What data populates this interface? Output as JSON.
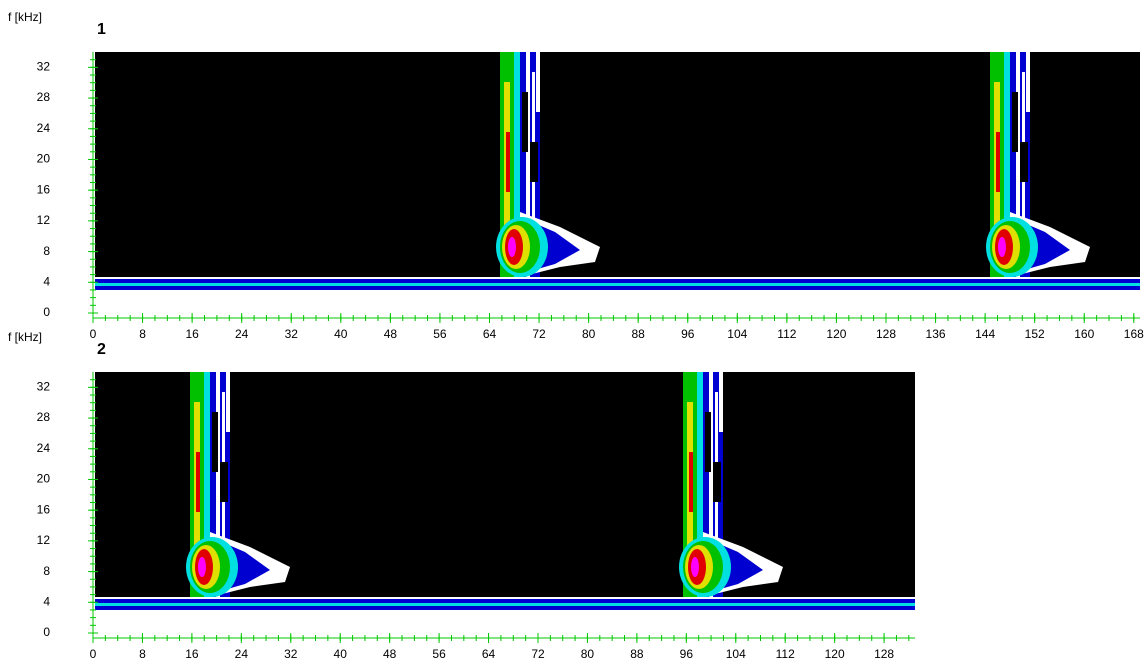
{
  "chart_data": [
    {
      "type": "spectrogram",
      "title": "1",
      "ylabel": "f [kHz]",
      "xlim": [
        0,
        169
      ],
      "xticks": [
        0,
        8,
        16,
        24,
        32,
        40,
        48,
        56,
        64,
        72,
        80,
        88,
        96,
        104,
        112,
        120,
        128,
        136,
        144,
        152,
        160,
        168
      ],
      "ylim": [
        0,
        34
      ],
      "yticks": [
        0,
        4,
        8,
        12,
        16,
        20,
        24,
        28,
        32
      ],
      "axis_color": "#00c800"
    },
    {
      "type": "spectrogram",
      "title": "2",
      "ylabel": "f [kHz]",
      "xlim": [
        0,
        133
      ],
      "xticks": [
        0,
        8,
        16,
        24,
        32,
        40,
        48,
        56,
        64,
        72,
        80,
        88,
        96,
        104,
        112,
        120,
        128
      ],
      "ylim": [
        0,
        34
      ],
      "yticks": [
        0,
        4,
        8,
        12,
        16,
        20,
        24,
        28,
        32
      ],
      "axis_color": "#00c800"
    }
  ]
}
